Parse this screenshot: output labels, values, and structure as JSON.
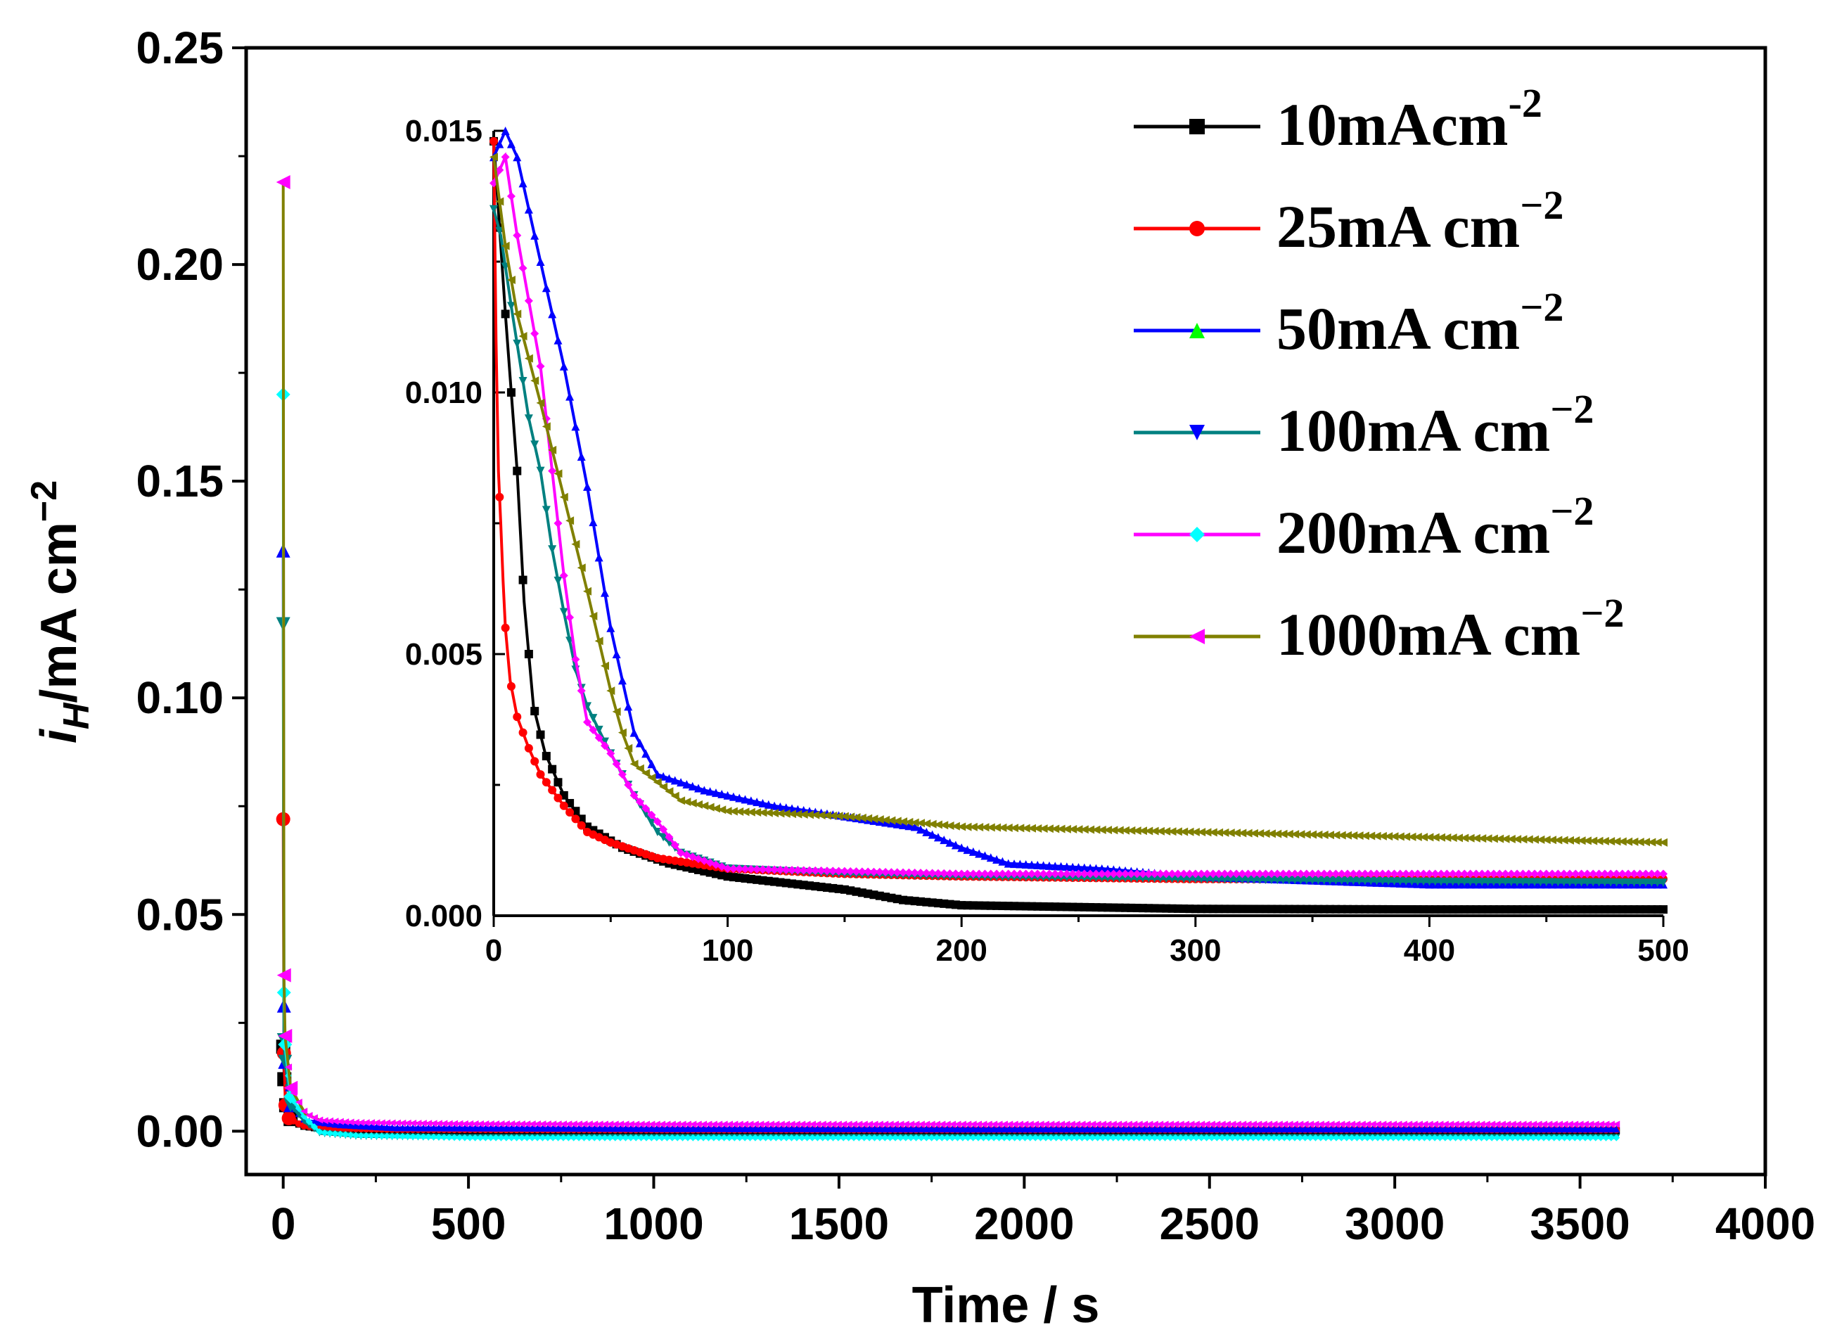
{
  "chart_data": [
    {
      "id": "main",
      "type": "line",
      "title": "",
      "xlabel": "Time / s",
      "ylabel": {
        "i": "i",
        "sub": "H",
        "rest": "/mA cm",
        "sup": "−2"
      },
      "xlim": [
        -100,
        4000
      ],
      "ylim": [
        -0.01,
        0.25
      ],
      "xticks": [
        0,
        500,
        1000,
        1500,
        2000,
        2500,
        3000,
        3500,
        4000
      ],
      "xtick_labels": [
        "0",
        "500",
        "1000",
        "1500",
        "2000",
        "2500",
        "3000",
        "3500",
        "4000"
      ],
      "yticks": [
        0.0,
        0.05,
        0.1,
        0.15,
        0.2,
        0.25
      ],
      "ytick_labels": [
        "0.00",
        "0.05",
        "0.10",
        "0.15",
        "0.20",
        "0.25"
      ],
      "grid": false,
      "series": [
        {
          "name": "10mAcm-2",
          "color": "#000000",
          "marker": "square",
          "points": [
            [
              0,
              0.0195
            ],
            [
              3,
              0.012
            ],
            [
              8,
              0.006
            ],
            [
              20,
              0.0028
            ],
            [
              50,
              0.0012
            ],
            [
              100,
              0.0006
            ],
            [
              200,
              0.0002
            ],
            [
              500,
              0.0001
            ],
            [
              1000,
              0.0001
            ],
            [
              2000,
              0.0001
            ],
            [
              3000,
              0.0001
            ],
            [
              3600,
              0.0001
            ]
          ]
        },
        {
          "name": "25mA cm−2",
          "color": "#ff0000",
          "marker": "circle",
          "points": [
            [
              0,
              0.072
            ],
            [
              2,
              0.018
            ],
            [
              6,
              0.006
            ],
            [
              15,
              0.003
            ],
            [
              50,
              0.0013
            ],
            [
              100,
              0.0007
            ],
            [
              300,
              0.0004
            ],
            [
              1000,
              0.0003
            ],
            [
              2000,
              0.0003
            ],
            [
              3600,
              0.0003
            ]
          ]
        },
        {
          "name": "50mA cm−2",
          "color": "#0000ff",
          "marker": "triangle-up",
          "points": [
            [
              0,
              0.134
            ],
            [
              2,
              0.029
            ],
            [
              5,
              0.016
            ],
            [
              20,
              0.006
            ],
            [
              60,
              0.0025
            ],
            [
              150,
              0.0015
            ],
            [
              300,
              0.0008
            ],
            [
              1000,
              0.0006
            ],
            [
              2000,
              0.0005
            ],
            [
              3600,
              0.0005
            ]
          ]
        },
        {
          "name": "100mA cm−2",
          "color": "#008080",
          "marker": "triangle-down",
          "points": [
            [
              0,
              0.117
            ],
            [
              2,
              0.021
            ],
            [
              5,
              0.016
            ],
            [
              20,
              0.006
            ],
            [
              60,
              0.002
            ],
            [
              100,
              -0.0005
            ],
            [
              200,
              -0.0012
            ],
            [
              500,
              -0.0015
            ],
            [
              1000,
              -0.0015
            ],
            [
              2000,
              -0.0015
            ],
            [
              3600,
              -0.0015
            ]
          ]
        },
        {
          "name": "200mA cm−2",
          "color": "#00ffff",
          "marker": "diamond",
          "points": [
            [
              0,
              0.17
            ],
            [
              2,
              0.032
            ],
            [
              5,
              0.02
            ],
            [
              20,
              0.008
            ],
            [
              60,
              0.003
            ],
            [
              100,
              -0.0003
            ],
            [
              200,
              -0.001
            ],
            [
              500,
              -0.0015
            ],
            [
              1000,
              -0.0015
            ],
            [
              2000,
              -0.0015
            ],
            [
              3600,
              -0.0015
            ]
          ]
        },
        {
          "name": "1000mA cm−2",
          "color": "#ff00ff",
          "line_color": "#808000",
          "marker": "triangle-left",
          "points": [
            [
              0,
              0.219
            ],
            [
              2,
              0.036
            ],
            [
              5,
              0.022
            ],
            [
              20,
              0.01
            ],
            [
              60,
              0.004
            ],
            [
              100,
              0.0025
            ],
            [
              200,
              0.002
            ],
            [
              500,
              0.0017
            ],
            [
              1000,
              0.0016
            ],
            [
              2000,
              0.0016
            ],
            [
              3000,
              0.0016
            ],
            [
              3600,
              0.0016
            ]
          ]
        }
      ]
    },
    {
      "id": "inset",
      "type": "line",
      "title": "",
      "xlabel": "",
      "ylabel": "",
      "xlim": [
        0,
        500
      ],
      "ylim": [
        0,
        0.015
      ],
      "xticks": [
        0,
        100,
        200,
        300,
        400,
        500
      ],
      "xtick_labels": [
        "0",
        "100",
        "200",
        "300",
        "400",
        "500"
      ],
      "yticks": [
        0.0,
        0.005,
        0.01,
        0.015
      ],
      "ytick_labels": [
        "0.000",
        "0.005",
        "0.010",
        "0.015"
      ],
      "grid": false,
      "series": [
        {
          "name": "10mAcm-2",
          "color": "#000000",
          "marker": "square",
          "points": [
            [
              0,
              0.0148
            ],
            [
              5,
              0.0115
            ],
            [
              10,
              0.0085
            ],
            [
              13,
              0.006
            ],
            [
              17,
              0.004
            ],
            [
              22,
              0.0031
            ],
            [
              30,
              0.0023
            ],
            [
              40,
              0.0017
            ],
            [
              55,
              0.0013
            ],
            [
              75,
              0.001
            ],
            [
              100,
              0.00075
            ],
            [
              150,
              0.0005
            ],
            [
              175,
              0.0003
            ],
            [
              200,
              0.0002
            ],
            [
              300,
              0.00013
            ],
            [
              400,
              0.00012
            ],
            [
              500,
              0.00012
            ]
          ]
        },
        {
          "name": "25mA cm−2",
          "color": "#ff0000",
          "marker": "circle",
          "points": [
            [
              0,
              0.0148
            ],
            [
              1,
              0.011
            ],
            [
              2,
              0.0085
            ],
            [
              3,
              0.0075
            ],
            [
              4,
              0.0064
            ],
            [
              5,
              0.0055
            ],
            [
              7,
              0.0045
            ],
            [
              10,
              0.0038
            ],
            [
              15,
              0.0032
            ],
            [
              20,
              0.0027
            ],
            [
              30,
              0.0021
            ],
            [
              40,
              0.0016
            ],
            [
              50,
              0.0014
            ],
            [
              70,
              0.0011
            ],
            [
              100,
              0.0009
            ],
            [
              150,
              0.0008
            ],
            [
              200,
              0.00075
            ],
            [
              300,
              0.0007
            ],
            [
              400,
              0.0007
            ],
            [
              500,
              0.0007
            ]
          ]
        },
        {
          "name": "50mA cm−2",
          "color": "#0000ff",
          "marker": "triangle-up",
          "points": [
            [
              0,
              0.0145
            ],
            [
              5,
              0.015
            ],
            [
              10,
              0.0145
            ],
            [
              20,
              0.0125
            ],
            [
              30,
              0.0105
            ],
            [
              40,
              0.0082
            ],
            [
              50,
              0.0055
            ],
            [
              55,
              0.0045
            ],
            [
              60,
              0.0035
            ],
            [
              70,
              0.0027
            ],
            [
              90,
              0.0024
            ],
            [
              120,
              0.0021
            ],
            [
              150,
              0.0019
            ],
            [
              180,
              0.0017
            ],
            [
              200,
              0.0013
            ],
            [
              220,
              0.001
            ],
            [
              260,
              0.0009
            ],
            [
              300,
              0.00075
            ],
            [
              400,
              0.0006
            ],
            [
              500,
              0.0006
            ]
          ]
        },
        {
          "name": "100mA cm−2",
          "color": "#008080",
          "marker": "triangle-down",
          "points": [
            [
              0,
              0.0135
            ],
            [
              3,
              0.013
            ],
            [
              8,
              0.0115
            ],
            [
              15,
              0.0095
            ],
            [
              20,
              0.0085
            ],
            [
              25,
              0.007
            ],
            [
              30,
              0.0058
            ],
            [
              35,
              0.0047
            ],
            [
              40,
              0.004
            ],
            [
              50,
              0.0031
            ],
            [
              60,
              0.0023
            ],
            [
              70,
              0.0016
            ],
            [
              80,
              0.0012
            ],
            [
              100,
              0.0009
            ],
            [
              150,
              0.0008
            ],
            [
              200,
              0.00075
            ],
            [
              300,
              0.0007
            ],
            [
              400,
              0.00065
            ],
            [
              500,
              0.00063
            ]
          ]
        },
        {
          "name": "200mA cm−2",
          "color": "#ff00ff",
          "marker": "diamond",
          "points": [
            [
              0,
              0.014
            ],
            [
              5,
              0.0145
            ],
            [
              10,
              0.013
            ],
            [
              20,
              0.0105
            ],
            [
              25,
              0.0085
            ],
            [
              30,
              0.0065
            ],
            [
              35,
              0.0049
            ],
            [
              40,
              0.0037
            ],
            [
              50,
              0.0031
            ],
            [
              60,
              0.0023
            ],
            [
              70,
              0.0018
            ],
            [
              80,
              0.0012
            ],
            [
              100,
              0.0009
            ],
            [
              150,
              0.00085
            ],
            [
              200,
              0.0008
            ],
            [
              300,
              0.0008
            ],
            [
              400,
              0.0008
            ],
            [
              500,
              0.0008
            ]
          ]
        },
        {
          "name": "1000mA cm−2",
          "color": "#808000",
          "marker": "triangle-left",
          "points": [
            [
              0,
              0.0145
            ],
            [
              5,
              0.0128
            ],
            [
              10,
              0.0115
            ],
            [
              20,
              0.0098
            ],
            [
              30,
              0.008
            ],
            [
              40,
              0.0062
            ],
            [
              50,
              0.0043
            ],
            [
              55,
              0.0035
            ],
            [
              60,
              0.0029
            ],
            [
              80,
              0.0022
            ],
            [
              100,
              0.002
            ],
            [
              150,
              0.0019
            ],
            [
              200,
              0.0017
            ],
            [
              300,
              0.0016
            ],
            [
              400,
              0.0015
            ],
            [
              500,
              0.0014
            ]
          ]
        }
      ]
    }
  ],
  "legend": {
    "position": "top-right",
    "entries": [
      {
        "label": "10mAcm",
        "sup": "-2",
        "line_color": "#000000",
        "marker_color": "#000000",
        "marker": "square"
      },
      {
        "label": "25mA cm",
        "sup": "−2",
        "line_color": "#ff0000",
        "marker_color": "#ff0000",
        "marker": "circle"
      },
      {
        "label": "50mA cm",
        "sup": "−2",
        "line_color": "#0000ff",
        "marker_color": "#00ff00",
        "marker": "triangle-up"
      },
      {
        "label": "100mA cm",
        "sup": "−2",
        "line_color": "#008080",
        "marker_color": "#0000ff",
        "marker": "triangle-down"
      },
      {
        "label": "200mA cm",
        "sup": "−2",
        "line_color": "#ff00ff",
        "marker_color": "#00ffff",
        "marker": "diamond"
      },
      {
        "label": "1000mA cm",
        "sup": "−2",
        "line_color": "#808000",
        "marker_color": "#ff00ff",
        "marker": "triangle-left"
      }
    ]
  }
}
